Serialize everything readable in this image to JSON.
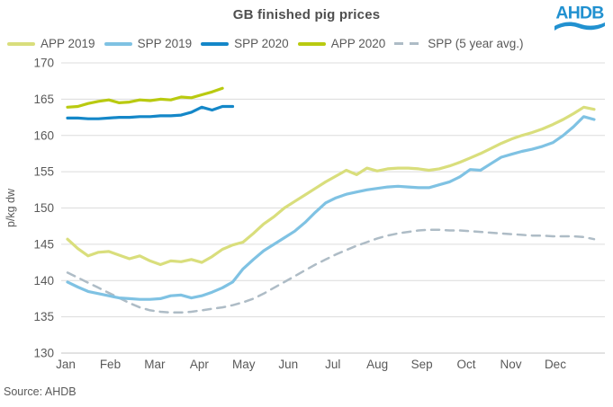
{
  "header": {
    "title": "GB finished pig prices",
    "logo_text": "AHDB"
  },
  "source": {
    "label": "Source: AHDB"
  },
  "colors": {
    "title_text": "#4f4f4f",
    "axis_text": "#595959",
    "gridline": "#dcdcdc",
    "axis_line": "#c6c6c6",
    "logo_blue": "#2191d0"
  },
  "chart_data": {
    "type": "line",
    "title": "GB finished pig prices",
    "xlabel": "",
    "ylabel": "p/kg dw",
    "ylim": [
      130,
      170
    ],
    "yticks": [
      130,
      135,
      140,
      145,
      150,
      155,
      160,
      165,
      170
    ],
    "categories": [
      "Jan",
      "Feb",
      "Mar",
      "Apr",
      "May",
      "Jun",
      "Jul",
      "Aug",
      "Sep",
      "Oct",
      "Nov",
      "Dec"
    ],
    "x_unit": "week (52 weeks across year)",
    "grid": true,
    "legend_position": "top",
    "series": [
      {
        "name": "APP 2019",
        "color": "#d9de7c",
        "style": "solid",
        "values": [
          145.7,
          144.4,
          143.4,
          143.9,
          144.0,
          143.5,
          143.0,
          143.4,
          142.7,
          142.2,
          142.7,
          142.6,
          142.9,
          142.5,
          143.3,
          144.3,
          144.9,
          145.3,
          146.5,
          147.8,
          148.8,
          150.0,
          150.9,
          151.8,
          152.7,
          153.6,
          154.4,
          155.2,
          154.6,
          155.5,
          155.1,
          155.4,
          155.5,
          155.5,
          155.4,
          155.2,
          155.4,
          155.8,
          156.3,
          156.9,
          157.5,
          158.2,
          158.9,
          159.5,
          160.0,
          160.4,
          160.9,
          161.5,
          162.2,
          163.0,
          163.9,
          163.6
        ]
      },
      {
        "name": "SPP 2019",
        "color": "#7fc2e3",
        "style": "solid",
        "values": [
          139.8,
          139.1,
          138.5,
          138.2,
          137.9,
          137.6,
          137.5,
          137.4,
          137.4,
          137.5,
          137.9,
          138.0,
          137.6,
          137.9,
          138.4,
          139.0,
          139.8,
          141.6,
          142.9,
          144.1,
          145.0,
          145.9,
          146.8,
          148.0,
          149.4,
          150.7,
          151.4,
          151.9,
          152.2,
          152.5,
          152.7,
          152.9,
          153.0,
          152.9,
          152.8,
          152.8,
          153.2,
          153.6,
          154.3,
          155.3,
          155.2,
          156.1,
          157.0,
          157.4,
          157.8,
          158.1,
          158.5,
          159.0,
          160.0,
          161.2,
          162.6,
          162.2
        ]
      },
      {
        "name": "SPP 2020",
        "color": "#1487c8",
        "style": "solid",
        "values": [
          162.4,
          162.4,
          162.3,
          162.3,
          162.4,
          162.5,
          162.5,
          162.6,
          162.6,
          162.7,
          162.7,
          162.8,
          163.2,
          163.9,
          163.5,
          164.0,
          164.0
        ]
      },
      {
        "name": "APP 2020",
        "color": "#b9ca10",
        "style": "solid",
        "values": [
          163.9,
          164.0,
          164.4,
          164.7,
          164.9,
          164.5,
          164.6,
          164.9,
          164.8,
          165.0,
          164.9,
          165.3,
          165.2,
          165.6,
          166.0,
          166.5
        ]
      },
      {
        "name": "SPP (5 year avg.)",
        "color": "#aebcc6",
        "style": "dashed",
        "values": [
          141.1,
          140.4,
          139.7,
          139.0,
          138.3,
          137.6,
          136.9,
          136.3,
          135.9,
          135.7,
          135.6,
          135.6,
          135.7,
          135.9,
          136.1,
          136.3,
          136.6,
          137.0,
          137.5,
          138.2,
          139.0,
          139.8,
          140.6,
          141.4,
          142.2,
          142.9,
          143.6,
          144.2,
          144.8,
          145.3,
          145.8,
          146.2,
          146.5,
          146.7,
          146.9,
          147.0,
          147.0,
          146.9,
          146.9,
          146.8,
          146.7,
          146.6,
          146.5,
          146.4,
          146.3,
          146.2,
          146.2,
          146.1,
          146.1,
          146.1,
          146.0,
          145.7
        ]
      }
    ]
  }
}
